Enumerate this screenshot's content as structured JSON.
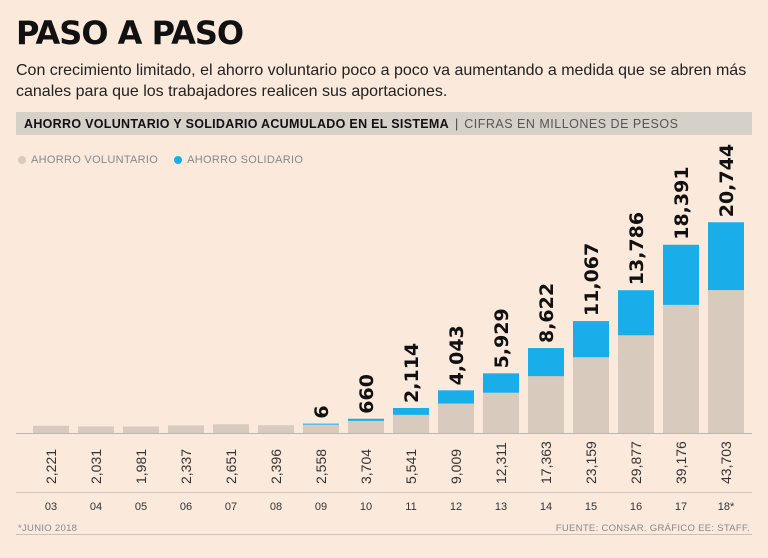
{
  "header": {
    "title": "PASO A PASO",
    "subtitle": "Con crecimiento limitado, el ahorro voluntario poco a poco va aumentando a medida que se abren más canales para que los trabajadores realicen sus aportaciones."
  },
  "band": {
    "main": "AHORRO VOLUNTARIO Y SOLIDARIO ACUMULADO EN EL SISTEMA",
    "separator": "|",
    "units": "CIFRAS EN MILLONES DE PESOS"
  },
  "footer": {
    "note": "*JUNIO 2018",
    "source": "FUENTE: CONSAR. GRÁFICO EE: STAFF."
  },
  "colors": {
    "voluntario": "#d8cbbd",
    "solidario": "#19aeea",
    "background": "#fbe9dc"
  },
  "chart_data": {
    "type": "bar",
    "stacked": true,
    "title": "AHORRO VOLUNTARIO Y SOLIDARIO ACUMULADO EN EL SISTEMA",
    "ylabel": "CIFRAS EN MILLONES DE PESOS",
    "categories": [
      "03",
      "04",
      "05",
      "06",
      "07",
      "08",
      "09",
      "10",
      "11",
      "12",
      "13",
      "14",
      "15",
      "16",
      "17",
      "18*"
    ],
    "legend_position": "top-left",
    "series": [
      {
        "name": "AHORRO VOLUNTARIO",
        "values": [
          2221,
          2031,
          1981,
          2337,
          2651,
          2396,
          2558,
          3704,
          5541,
          9009,
          12311,
          17363,
          23159,
          29877,
          39176,
          43703
        ],
        "labels": [
          "2,221",
          "2,031",
          "1,981",
          "2,337",
          "2,651",
          "2,396",
          "2,558",
          "3,704",
          "5,541",
          "9,009",
          "12,311",
          "17,363",
          "23,159",
          "29,877",
          "39,176",
          "43,703"
        ]
      },
      {
        "name": "AHORRO SOLIDARIO",
        "values": [
          0,
          0,
          0,
          0,
          0,
          0,
          6,
          660,
          2114,
          4043,
          5929,
          8622,
          11067,
          13786,
          18391,
          20744
        ],
        "labels": [
          "",
          "",
          "",
          "",
          "",
          "",
          "6",
          "660",
          "2,114",
          "4,043",
          "5,929",
          "8,622",
          "11,067",
          "13,786",
          "18,391",
          "20,744"
        ]
      }
    ],
    "ylim": [
      0,
      70000
    ]
  }
}
